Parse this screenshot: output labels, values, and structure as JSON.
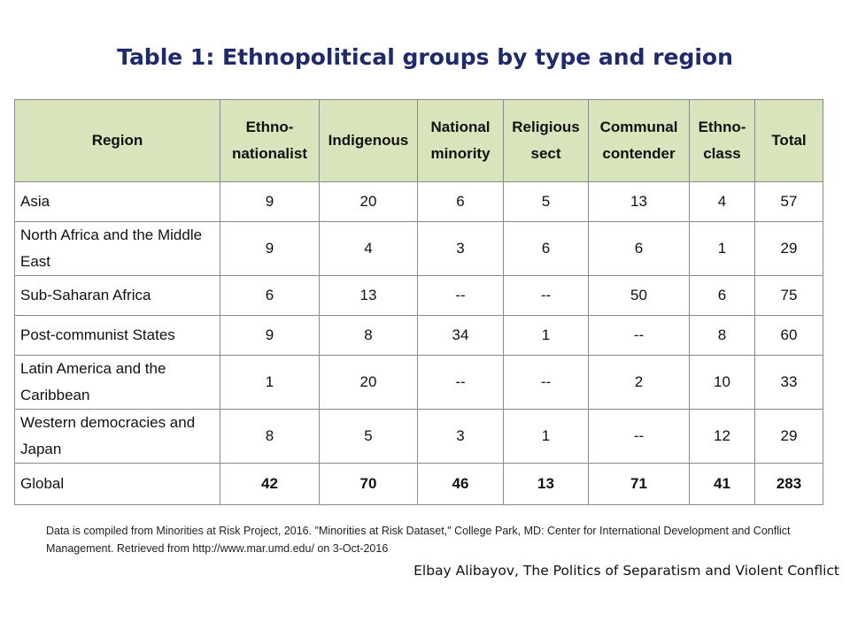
{
  "title": "Table 1: Ethnopolitical groups by type and region",
  "table": {
    "headers": [
      "Region",
      "Ethno-\nnationalist",
      "Indigenous",
      "National\nminority",
      "Religious\nsect",
      "Communal\ncontender",
      "Ethno-\nclass",
      "Total"
    ],
    "rows": [
      {
        "region": "Asia",
        "values": [
          "9",
          "20",
          "6",
          "5",
          "13",
          "4",
          "57"
        ]
      },
      {
        "region": "North Africa and the Middle East",
        "values": [
          "9",
          "4",
          "3",
          "6",
          "6",
          "1",
          "29"
        ]
      },
      {
        "region": "Sub-Saharan Africa",
        "values": [
          "6",
          "13",
          "--",
          "--",
          "50",
          "6",
          "75"
        ]
      },
      {
        "region": "Post-communist States",
        "values": [
          "9",
          "8",
          "34",
          "1",
          "--",
          "8",
          "60"
        ]
      },
      {
        "region": "Latin America and the Caribbean",
        "values": [
          "1",
          "20",
          "--",
          "--",
          "2",
          "10",
          "33"
        ]
      },
      {
        "region": "Western democracies and Japan",
        "values": [
          "8",
          "5",
          "3",
          "1",
          "--",
          "12",
          "29"
        ]
      },
      {
        "region": "Global",
        "values": [
          "42",
          "70",
          "46",
          "13",
          "71",
          "41",
          "283"
        ]
      }
    ]
  },
  "note": "Data is compiled from Minorities at Risk Project, 2016. \"Minorities at Risk Dataset,\" College Park, MD: Center for International Development and Conflict Management. Retrieved from http://www.mar.umd.edu/ on 3-Oct-2016",
  "credit": "Elbay Alibayov, The Politics of Separatism and Violent Conflict"
}
